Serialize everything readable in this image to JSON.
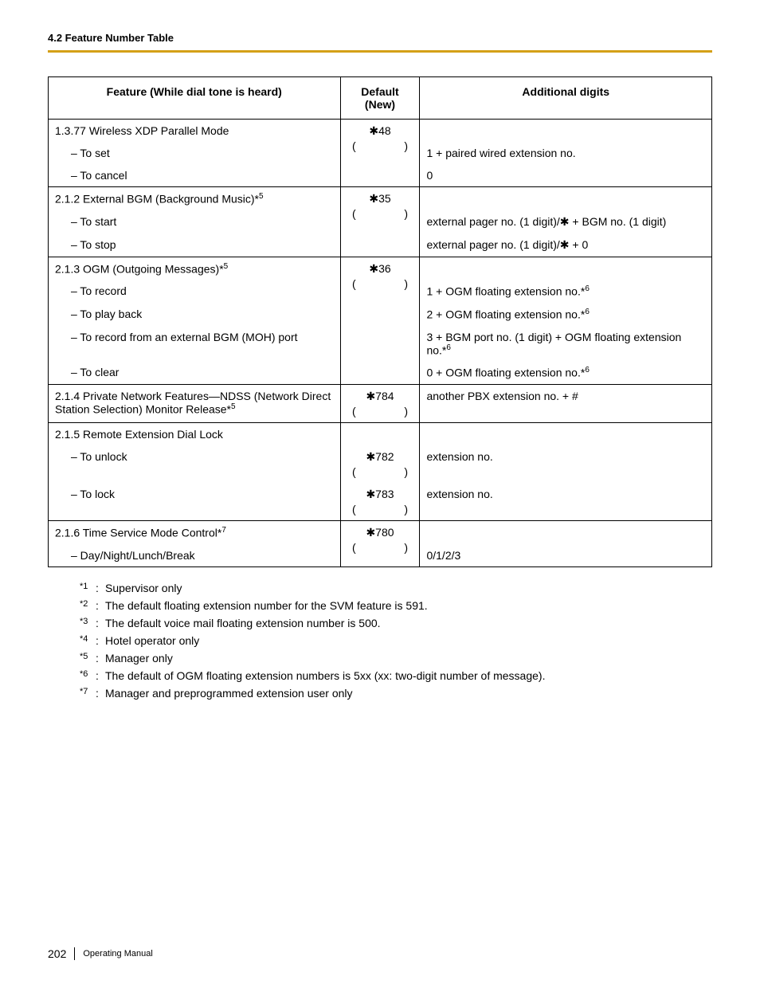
{
  "page": {
    "section_header": "4.2 Feature Number Table",
    "page_number": "202",
    "footer_title": "Operating Manual"
  },
  "table": {
    "headers": {
      "feature": "Feature (While dial tone is heard)",
      "default": "Default (New)",
      "additional": "Additional digits"
    },
    "groups": [
      {
        "title": "1.3.77 Wireless XDP Parallel Mode",
        "title_sup": "",
        "default_code": "48",
        "has_paren": true,
        "rows": [
          {
            "feature": "– To set",
            "additional": "1 + paired wired extension no."
          },
          {
            "feature": "– To cancel",
            "additional": "0"
          }
        ]
      },
      {
        "title": "2.1.2 External BGM (Background Music)*",
        "title_sup": "5",
        "default_code": "35",
        "has_paren": true,
        "rows": [
          {
            "feature": "– To start",
            "additional": "external pager no. (1 digit)/✱ + BGM no. (1 digit)"
          },
          {
            "feature": "– To stop",
            "additional": "external pager no. (1 digit)/✱ + 0"
          }
        ]
      },
      {
        "title": "2.1.3 OGM (Outgoing Messages)*",
        "title_sup": "5",
        "default_code": "36",
        "has_paren": true,
        "rows": [
          {
            "feature": "– To record",
            "additional": "1 + OGM floating extension no.*",
            "add_sup": "6"
          },
          {
            "feature": "– To play back",
            "additional": "2 + OGM floating extension no.*",
            "add_sup": "6"
          },
          {
            "feature": "– To record from an external BGM (MOH) port",
            "additional": "3 + BGM port no. (1 digit) + OGM floating extension no.*",
            "add_sup": "6"
          },
          {
            "feature": "– To clear",
            "additional": "0 + OGM floating extension no.*",
            "add_sup": "6"
          }
        ]
      },
      {
        "title": "2.1.4 Private Network Features—NDSS (Network Direct Station Selection) Monitor Release*",
        "title_sup": "5",
        "default_code": "784",
        "has_paren": true,
        "single_additional": "another PBX extension no. + #",
        "rows": []
      },
      {
        "title": "2.1.5 Remote Extension Dial Lock",
        "title_sup": "",
        "default_code": "",
        "has_paren": false,
        "rows_each_default": [
          {
            "feature": "– To unlock",
            "code": "782",
            "paren": true,
            "additional": "extension no."
          },
          {
            "feature": "– To lock",
            "code": "783",
            "paren": true,
            "additional": "extension no."
          }
        ]
      },
      {
        "title": "2.1.6 Time Service Mode Control*",
        "title_sup": "7",
        "default_code": "780",
        "has_paren": true,
        "rows": [
          {
            "feature": "– Day/Night/Lunch/Break",
            "additional": "0/1/2/3"
          }
        ]
      }
    ]
  },
  "footnotes": [
    {
      "mark": "*1",
      "text": "Supervisor only"
    },
    {
      "mark": "*2",
      "text": "The default floating extension number for the SVM feature is 591."
    },
    {
      "mark": "*3",
      "text": "The default voice mail floating extension number is 500."
    },
    {
      "mark": "*4",
      "text": "Hotel operator only"
    },
    {
      "mark": "*5",
      "text": "Manager only"
    },
    {
      "mark": "*6",
      "text": "The default of OGM floating extension numbers is 5xx (xx: two-digit number of message)."
    },
    {
      "mark": "*7",
      "text": "Manager and preprogrammed extension user only"
    }
  ],
  "glyphs": {
    "star": "✱",
    "open_paren": "(",
    "close_paren": ")"
  }
}
